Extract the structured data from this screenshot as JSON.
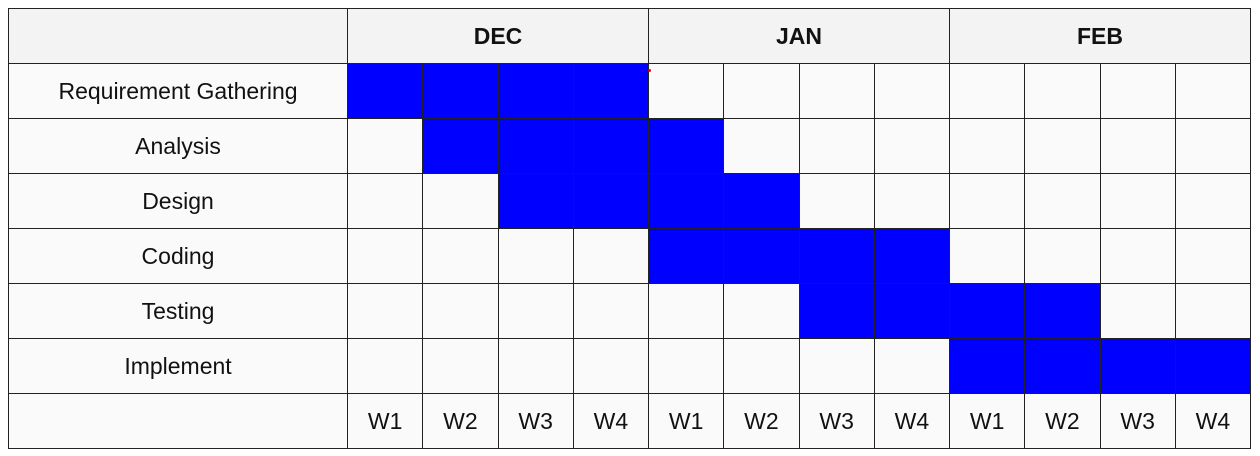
{
  "chart_data": {
    "type": "gantt",
    "months": [
      "DEC",
      "JAN",
      "FEB"
    ],
    "weeks": [
      "W1",
      "W2",
      "W3",
      "W4",
      "W1",
      "W2",
      "W3",
      "W4",
      "W1",
      "W2",
      "W3",
      "W4"
    ],
    "tasks": [
      {
        "name": "Requirement Gathering",
        "start_week": 1,
        "end_week": 4
      },
      {
        "name": "Analysis",
        "start_week": 2,
        "end_week": 5
      },
      {
        "name": "Design",
        "start_week": 3,
        "end_week": 6
      },
      {
        "name": "Coding",
        "start_week": 5,
        "end_week": 8
      },
      {
        "name": "Testing",
        "start_week": 7,
        "end_week": 10
      },
      {
        "name": "Implement",
        "start_week": 9,
        "end_week": 12
      }
    ],
    "bar_color": "#0000ff"
  }
}
